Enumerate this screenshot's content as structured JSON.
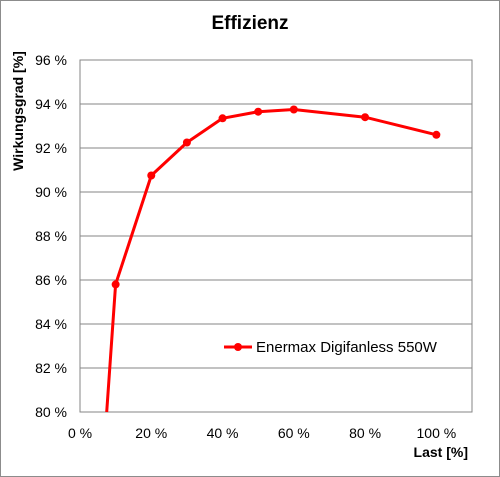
{
  "chart_data": {
    "type": "line",
    "title": "Effizienz",
    "xlabel": "Last [%]",
    "ylabel": "Wirkungsgrad [%]",
    "xlim": [
      0,
      110
    ],
    "ylim": [
      80,
      96
    ],
    "x_ticks": [
      "0 %",
      "20 %",
      "40 %",
      "60 %",
      "80 %",
      "100 %"
    ],
    "y_ticks": [
      "80 %",
      "82 %",
      "84 %",
      "86 %",
      "88 %",
      "90 %",
      "92 %",
      "94 %",
      "96 %"
    ],
    "x_tick_values": [
      0,
      20,
      40,
      60,
      80,
      100
    ],
    "y_tick_values": [
      80,
      82,
      84,
      86,
      88,
      90,
      92,
      94,
      96
    ],
    "grid": "horizontal",
    "legend_position": "lower-right",
    "series": [
      {
        "name": "Enermax Digifanless 550W",
        "color": "#ff0000",
        "x": [
          7.5,
          10,
          20,
          30,
          40,
          50,
          60,
          80,
          100
        ],
        "y": [
          80,
          85.8,
          90.75,
          92.25,
          93.35,
          93.65,
          93.75,
          93.4,
          92.6
        ],
        "markers": [
          false,
          true,
          true,
          true,
          true,
          true,
          true,
          true,
          true
        ]
      }
    ]
  }
}
